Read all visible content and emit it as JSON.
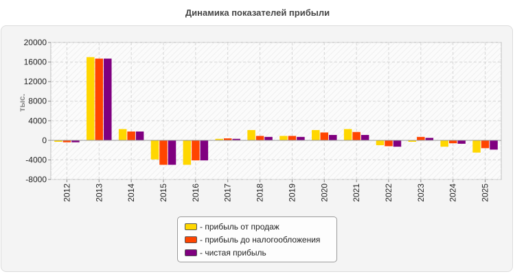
{
  "page": {
    "title": "Динамика показателей прибыли"
  },
  "chart_data": {
    "type": "bar",
    "title": "Динамика показателей прибыли",
    "xlabel": "",
    "ylabel": "тыс.",
    "ylim": [
      -8000,
      20000
    ],
    "yticks": [
      -8000,
      -4000,
      0,
      4000,
      8000,
      12000,
      16000,
      20000
    ],
    "grid": true,
    "legend_position": "bottom",
    "categories": [
      "2012",
      "2013",
      "2014",
      "2015",
      "2016",
      "2017",
      "2018",
      "2019",
      "2020",
      "2021",
      "2022",
      "2023",
      "2024",
      "2025"
    ],
    "series": [
      {
        "name": "прибыль от продаж",
        "color": "#ffd700",
        "values": [
          -300,
          17000,
          2300,
          -3900,
          -5000,
          300,
          2100,
          900,
          2100,
          2300,
          -1000,
          -300,
          -1300,
          -2500
        ]
      },
      {
        "name": "прибыль до налогообложения",
        "color": "#ff4500",
        "values": [
          -400,
          16700,
          1800,
          -5000,
          -4100,
          400,
          900,
          900,
          1600,
          1700,
          -1200,
          700,
          -600,
          -1600
        ]
      },
      {
        "name": "чистая прибыль",
        "color": "#800080",
        "values": [
          -400,
          16700,
          1800,
          -5000,
          -4100,
          300,
          700,
          700,
          1100,
          1100,
          -1300,
          500,
          -700,
          -1900
        ]
      }
    ]
  },
  "legend": {
    "items": [
      {
        "label": "- прибыль от продаж",
        "color": "#ffd700"
      },
      {
        "label": "- прибыль до налогообложения",
        "color": "#ff4500"
      },
      {
        "label": "- чистая прибыль",
        "color": "#800080"
      }
    ]
  }
}
